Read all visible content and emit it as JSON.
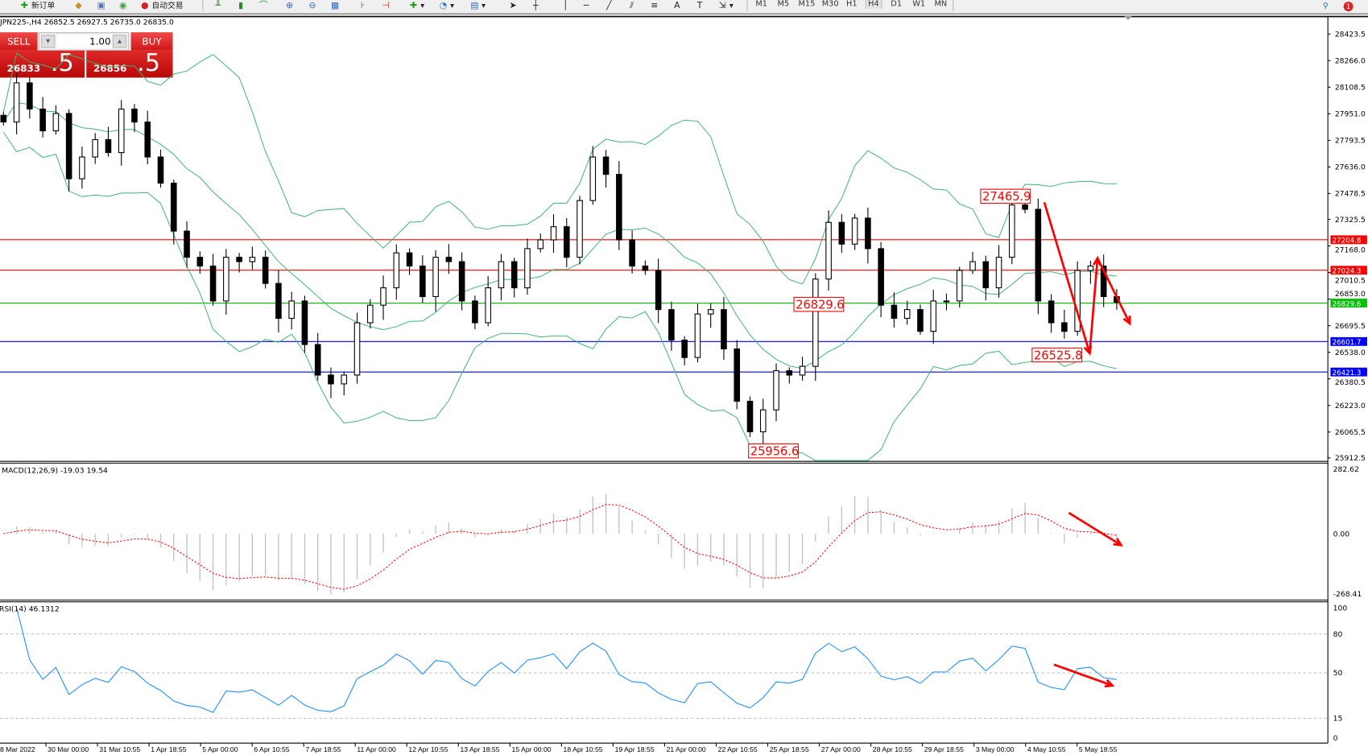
{
  "toolbar": {
    "items": [
      {
        "icon": "new-order-icon",
        "label": "新订单"
      },
      {
        "icon": "history-icon",
        "label": ""
      },
      {
        "icon": "terminal-icon",
        "label": ""
      },
      {
        "icon": "signal-icon",
        "label": ""
      },
      {
        "icon": "autotrading-icon",
        "label": "自动交易"
      }
    ],
    "timeframes": [
      "M1",
      "M5",
      "M15",
      "M30",
      "H1",
      "H4",
      "D1",
      "W1",
      "MN"
    ],
    "active_timeframe": "H4",
    "notification_count": "1"
  },
  "chart": {
    "title": "JPN225-,H4  26852.5 26927.5 26735.0 26835.0",
    "trade_panel": {
      "sell_label": "SELL",
      "buy_label": "BUY",
      "lot": "1.00",
      "sell_price_main": "26833",
      "sell_price_pips": ".5",
      "buy_price_main": "26856",
      "buy_price_pips": ".5"
    },
    "macd_label": "MACD(12,26,9) -19.03 19.54",
    "rsi_label": "RSI(14) 46.1312"
  },
  "chart_data": {
    "type": "candlestick",
    "symbol": "JPN225-",
    "timeframe": "H4",
    "closes": [
      27902,
      28134,
      27979,
      27850,
      27953,
      27566,
      27695,
      27798,
      27721,
      27979,
      27902,
      27695,
      27540,
      27256,
      27101,
      27049,
      26842,
      27101,
      27075,
      27101,
      26946,
      26739,
      26842,
      26584,
      26403,
      26351,
      26403,
      26713,
      26817,
      26920,
      27127,
      27049,
      26868,
      27101,
      27075,
      26842,
      26713,
      26920,
      27075,
      26920,
      27152,
      27204,
      27282,
      27101,
      27437,
      27695,
      27592,
      27204,
      27049,
      27023,
      26791,
      26610,
      26507,
      26765,
      26791,
      26558,
      26248,
      26067,
      26197,
      26429,
      26403,
      26455,
      26972,
      27308,
      27179,
      27333,
      27152,
      26817,
      26739,
      26791,
      26662,
      26842,
      26842,
      27023,
      27075,
      26920,
      27101,
      27411,
      27385,
      26842,
      26713,
      26662,
      27023,
      27049,
      26868,
      26835
    ],
    "price_axis_ticks": [
      "28423.5",
      "28266.0",
      "28108.5",
      "27951.0",
      "27793.5",
      "27636.0",
      "27478.5",
      "27325.5",
      "27168.0",
      "27010.5",
      "26853.0",
      "26695.5",
      "26538.0",
      "26380.5",
      "26223.0",
      "26065.5",
      "25912.5"
    ],
    "price_range": [
      25912.5,
      28423.5
    ],
    "horizontal_lines": [
      {
        "price": "27204.8",
        "color": "#ff0000"
      },
      {
        "price": "27024.3",
        "color": "#ff0000"
      },
      {
        "price": "26829.6",
        "color": "#00c000"
      },
      {
        "price": "26601.7",
        "color": "#0000ff"
      },
      {
        "price": "26421.3",
        "color": "#0000ff"
      }
    ],
    "annotations": [
      "27465.9",
      "26829.6",
      "26525.8",
      "25956.6"
    ],
    "time_labels": [
      "28 Mar 2022",
      "30 Mar 00:00",
      "31 Mar 10:55",
      "1 Apr 18:55",
      "5 Apr 00:00",
      "6 Apr 10:55",
      "7 Apr 18:55",
      "11 Apr 00:00",
      "12 Apr 10:55",
      "13 Apr 18:55",
      "15 Apr 00:00",
      "18 Apr 10:55",
      "19 Apr 18:55",
      "21 Apr 00:00",
      "22 Apr 10:55",
      "25 Apr 18:55",
      "27 Apr 00:00",
      "28 Apr 10:55",
      "29 Apr 18:55",
      "3 May 00:00",
      "4 May 10:55",
      "5 May 18:55"
    ],
    "indicators": {
      "bollinger": {
        "color": "#3cb371"
      },
      "macd": {
        "params": [
          12,
          26,
          9
        ],
        "main": -19.03,
        "signal": 19.54,
        "axis_ticks": [
          "282.62",
          "0.00",
          "-268.41"
        ],
        "range": [
          -268.41,
          282.62
        ],
        "histogram_color": "#c0c0c0",
        "signal_color": "#ff0000"
      },
      "rsi": {
        "period": 14,
        "value": 46.1312,
        "levels": [
          "80",
          "50",
          "15"
        ],
        "axis_ticks": [
          "100",
          "80",
          "50",
          "15",
          "0"
        ],
        "color": "#1e90ff"
      }
    },
    "drawn_arrows_color": "#ff0000"
  }
}
